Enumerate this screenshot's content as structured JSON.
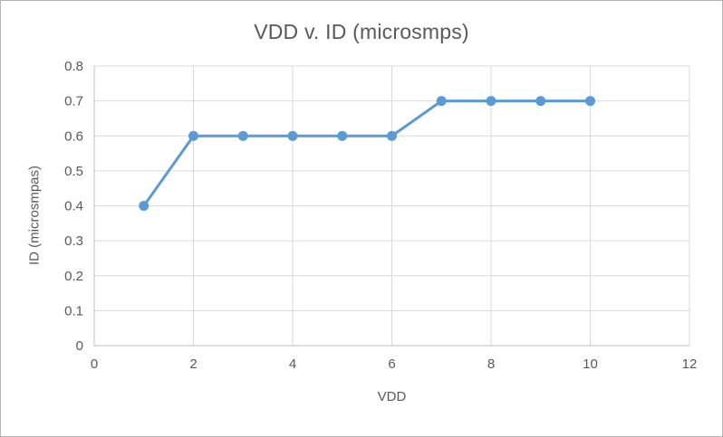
{
  "window": {
    "background": "#ffffff",
    "border_color": "#b3b3b3"
  },
  "chart_data": {
    "type": "line",
    "title": "VDD v. ID (microsmps)",
    "xlabel": "VDD",
    "ylabel": "ID (microsmpas)",
    "x": [
      1,
      2,
      3,
      4,
      5,
      6,
      7,
      8,
      9,
      10
    ],
    "values": [
      0.4,
      0.6,
      0.6,
      0.6,
      0.6,
      0.6,
      0.7,
      0.7,
      0.7,
      0.7
    ],
    "xlim": [
      0,
      12
    ],
    "ylim": [
      0,
      0.8
    ],
    "xticks": [
      0,
      2,
      4,
      6,
      8,
      10,
      12
    ],
    "yticks": [
      0,
      0.1,
      0.2,
      0.3,
      0.4,
      0.5,
      0.6,
      0.7,
      0.8
    ],
    "grid": true,
    "legend": false,
    "marker": "circle",
    "colors": {
      "series": "#5B9BD5",
      "grid": "#D9D9D9",
      "axis": "#BFBFBF",
      "text": "#595959"
    }
  }
}
